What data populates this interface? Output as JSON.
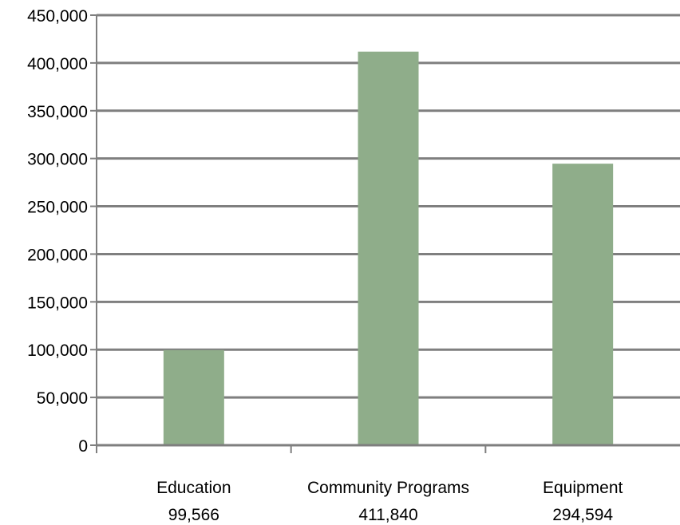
{
  "chart_data": {
    "type": "bar",
    "title": "",
    "xlabel": "",
    "ylabel": "",
    "categories": [
      "Education",
      "Community Programs",
      "Equipment"
    ],
    "value_labels": [
      "99,566",
      "411,840",
      "294,594"
    ],
    "values": [
      99566,
      411840,
      294594
    ],
    "ylim": [
      0,
      450000
    ],
    "yticks": [
      0,
      50000,
      100000,
      150000,
      200000,
      250000,
      300000,
      350000,
      400000,
      450000
    ],
    "ytick_labels": [
      "0",
      "50,000",
      "100,000",
      "150,000",
      "200,000",
      "250,000",
      "300,000",
      "350,000",
      "400,000",
      "450,000"
    ],
    "grid": true,
    "legend": "none",
    "colors": {
      "bar": "#8fad8a",
      "grid": "#7f7f7f",
      "axis": "#7f7f7f",
      "text": "#000000"
    }
  }
}
